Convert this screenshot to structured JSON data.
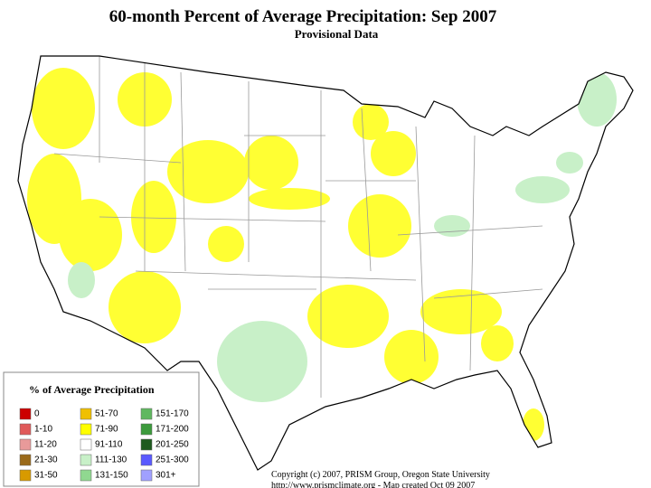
{
  "header": {
    "title": "60-month Percent of Average Precipitation: Sep 2007",
    "subtitle": "Provisional Data"
  },
  "legend": {
    "title": "% of Average Precipitation",
    "items": [
      {
        "label": "0",
        "color": "#cc0000"
      },
      {
        "label": "1-10",
        "color": "#e05a5a"
      },
      {
        "label": "11-20",
        "color": "#e89a9a"
      },
      {
        "label": "21-30",
        "color": "#9a6a1a"
      },
      {
        "label": "31-50",
        "color": "#d89a00"
      },
      {
        "label": "51-70",
        "color": "#f0c000"
      },
      {
        "label": "71-90",
        "color": "#ffff00"
      },
      {
        "label": "91-110",
        "color": "#ffffff"
      },
      {
        "label": "111-130",
        "color": "#c8f0c8"
      },
      {
        "label": "131-150",
        "color": "#90d890"
      },
      {
        "label": "151-170",
        "color": "#60b860"
      },
      {
        "label": "171-200",
        "color": "#3c9a3c"
      },
      {
        "label": "201-250",
        "color": "#1e5a1e"
      },
      {
        "label": "251-300",
        "color": "#5a5aff"
      },
      {
        "label": "301+",
        "color": "#a0a0ff"
      }
    ]
  },
  "footer": {
    "copyright": "Copyright (c) 2007, PRISM Group, Oregon State University",
    "credit": "http://www.prismclimate.org  -  Map created Oct 09 2007"
  }
}
